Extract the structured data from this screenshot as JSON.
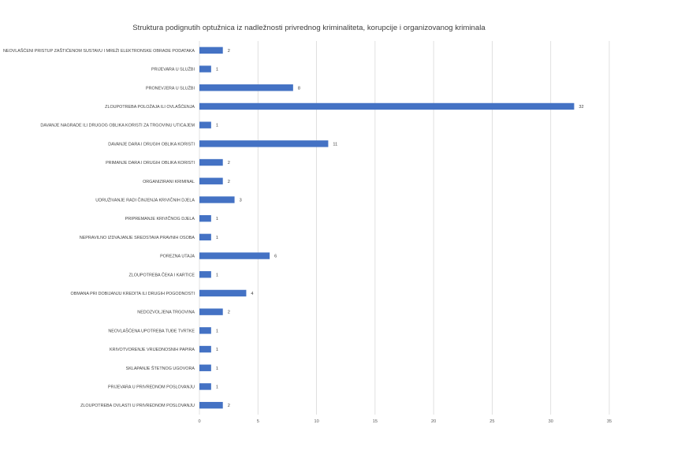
{
  "chart_data": {
    "type": "bar",
    "orientation": "horizontal",
    "title": "Struktura podignutih optužnica iz nadležnosti privrednog kriminaliteta, korupcije i organizovanog kriminala",
    "xlabel": "",
    "ylabel": "",
    "xlim": [
      0,
      35
    ],
    "xticks": [
      "0",
      "5",
      "10",
      "15",
      "20",
      "25",
      "30",
      "35"
    ],
    "grid": true,
    "legend": "none",
    "bar_color": "#4472c4",
    "categories": [
      "NEOVLAŠĆENI PRISTUP ZAŠTIĆENOM SUSTAVU I MREŽI ELEKTRONSKE OBRADE PODATAKA",
      "PRIJEVARA U SLUŽBI",
      "PRONEVJERA U SLUŽBI",
      "ZLOUPOTREBA POLOŽAJA ILI OVLAŠĆENJA",
      "DAVANJE NAGRADE ILI DRUGOG OBLIKA KORISTI ZA TRGOVINU UTICAJEM",
      "DAVANJE DARA I DRUGIH OBLIKA KORISTI",
      "PRIMANJE DARA I DRUGIH OBLIKA KORISTI",
      "ORGANIZIRANI KRIMINAL",
      "UDRUŽIVANJE RADI ČINJENJA KRIVIČNIH DJELA",
      "PRIPREMANJE KRIVIČNOG DJELA",
      "NEPRAVILNO IZDVAJANJE SREDSTAVA PRAVNIH OSOBA",
      "POREZNA UTAJA",
      "ZLOUPOTREBA ČEKA I KARTICE",
      "OBMANA PRI DOBIJANJU KREDITA ILI DRUGIH POGODNOSTI",
      "NEDOZVOLJENA TRGOVINA",
      "NEOVLAŠĆENA UPOTREBA TUĐE TVRTKE",
      "KRIVOTVORENJE VRIJEDNOSNIH PAPIRA",
      "SKLAPANJE ŠTETNOG UGOVORA",
      "PRIJEVARA U PRIVREDNOM POSLOVANJU",
      "ZLOUPOTREBA OVLASTI U PRIVREDNOM POSLOVANJU"
    ],
    "values": [
      2,
      1,
      8,
      32,
      1,
      11,
      2,
      2,
      3,
      1,
      1,
      6,
      1,
      4,
      2,
      1,
      1,
      1,
      1,
      2
    ]
  }
}
